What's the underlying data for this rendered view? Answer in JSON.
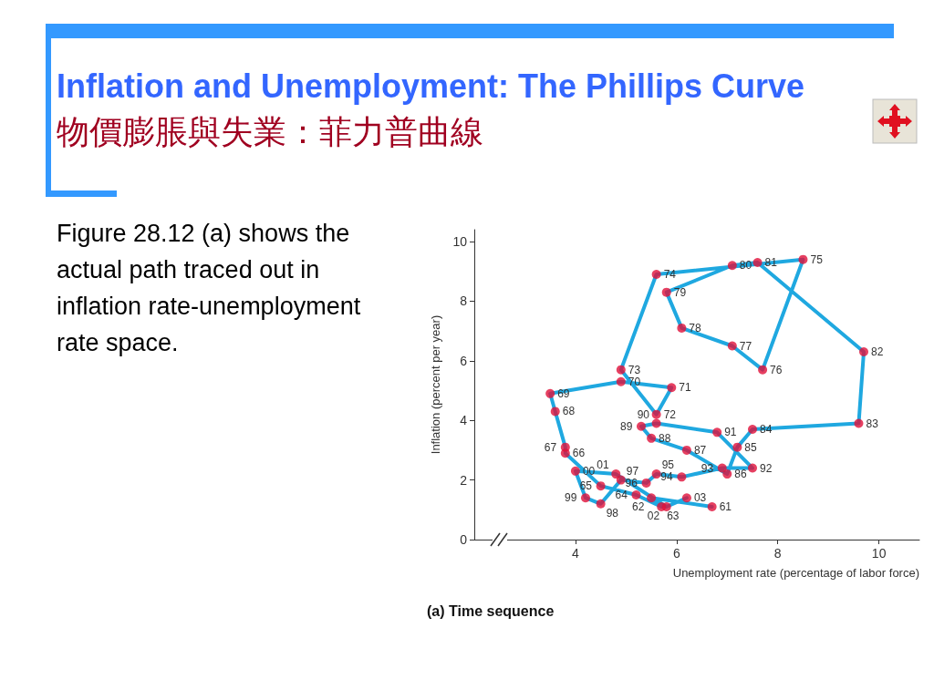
{
  "chart_data": {
    "type": "line",
    "title": "Inflation and Unemployment: The Phillips Curve物價膨脹與失業：菲力普曲線",
    "subtitle": "(a) Time sequence",
    "annotations": [
      "Figure 28.12 (a) shows the actual path traced out in inflation rate-unemployment rate space.",
      {
        "text": "61",
        "x": 6.7,
        "y": 1.1
      },
      {
        "text": "62",
        "x": 5.5,
        "y": 1.4
      },
      {
        "text": "63",
        "x": 5.7,
        "y": 1.1
      },
      {
        "text": "64",
        "x": 5.2,
        "y": 1.5
      },
      {
        "text": "65",
        "x": 4.5,
        "y": 1.8
      },
      {
        "text": "66",
        "x": 3.8,
        "y": 2.9
      },
      {
        "text": "67",
        "x": 3.8,
        "y": 3.1
      },
      {
        "text": "68",
        "x": 3.6,
        "y": 4.3
      },
      {
        "text": "69",
        "x": 3.5,
        "y": 4.9
      },
      {
        "text": "70",
        "x": 4.9,
        "y": 5.3
      },
      {
        "text": "71",
        "x": 5.9,
        "y": 5.1
      },
      {
        "text": "72",
        "x": 5.6,
        "y": 4.2
      },
      {
        "text": "73",
        "x": 4.9,
        "y": 5.7
      },
      {
        "text": "74",
        "x": 5.6,
        "y": 8.9
      },
      {
        "text": "75",
        "x": 8.5,
        "y": 9.4
      },
      {
        "text": "76",
        "x": 7.7,
        "y": 5.7
      },
      {
        "text": "77",
        "x": 7.1,
        "y": 6.5
      },
      {
        "text": "78",
        "x": 6.1,
        "y": 7.1
      },
      {
        "text": "79",
        "x": 5.8,
        "y": 8.3
      },
      {
        "text": "80",
        "x": 7.1,
        "y": 9.2
      },
      {
        "text": "81",
        "x": 7.6,
        "y": 9.3
      },
      {
        "text": "82",
        "x": 9.7,
        "y": 6.3
      },
      {
        "text": "83",
        "x": 9.6,
        "y": 3.9
      },
      {
        "text": "84",
        "x": 7.5,
        "y": 3.7
      },
      {
        "text": "85",
        "x": 7.2,
        "y": 3.1
      },
      {
        "text": "86",
        "x": 7.0,
        "y": 2.2
      },
      {
        "text": "87",
        "x": 6.2,
        "y": 3.0
      },
      {
        "text": "88",
        "x": 5.5,
        "y": 3.4
      },
      {
        "text": "89",
        "x": 5.3,
        "y": 3.8
      },
      {
        "text": "90",
        "x": 5.6,
        "y": 3.9
      },
      {
        "text": "91",
        "x": 6.8,
        "y": 3.6
      },
      {
        "text": "92",
        "x": 7.5,
        "y": 2.4
      },
      {
        "text": "93",
        "x": 6.9,
        "y": 2.4
      },
      {
        "text": "94",
        "x": 6.1,
        "y": 2.1
      },
      {
        "text": "95",
        "x": 5.6,
        "y": 2.2
      },
      {
        "text": "96",
        "x": 5.4,
        "y": 1.9
      },
      {
        "text": "97",
        "x": 4.9,
        "y": 2.0
      },
      {
        "text": "98",
        "x": 4.5,
        "y": 1.2
      },
      {
        "text": "99",
        "x": 4.2,
        "y": 1.4
      },
      {
        "text": "00",
        "x": 4.0,
        "y": 2.3
      },
      {
        "text": "01",
        "x": 4.8,
        "y": 2.2
      },
      {
        "text": "02",
        "x": 5.8,
        "y": 1.1
      },
      {
        "text": "03",
        "x": 6.2,
        "y": 1.4
      }
    ],
    "xlabel": "Unemployment rate (percentage of labor force)",
    "ylabel": "Inflation (percent per year)",
    "xlim": [
      2,
      10.8
    ],
    "xticks": [
      4,
      6,
      8,
      10
    ],
    "ylim": [
      0,
      10.4
    ],
    "yticks": [
      0,
      2,
      4,
      6,
      8,
      10
    ],
    "grid": false,
    "series": [
      {
        "color": "#1fa8e0",
        "marker": "none",
        "x": [
          6.7,
          5.5,
          5.7,
          5.2,
          4.5,
          3.8,
          3.8,
          3.6,
          3.5,
          4.9,
          5.9,
          5.6,
          4.9,
          5.6,
          8.5,
          7.7,
          7.1,
          6.1,
          5.8,
          7.1,
          7.6,
          9.7,
          9.6,
          7.5,
          7.2,
          7.0,
          6.2,
          5.5,
          5.3,
          5.6,
          6.8,
          7.5,
          6.9,
          6.1,
          5.6,
          5.4,
          4.9,
          4.5,
          4.2,
          4.0,
          4.8,
          5.8,
          6.2
        ],
        "values": [
          1.1,
          1.4,
          1.1,
          1.5,
          1.8,
          2.9,
          3.1,
          4.3,
          4.9,
          5.3,
          5.1,
          4.2,
          5.7,
          8.9,
          9.4,
          5.7,
          6.5,
          7.1,
          8.3,
          9.2,
          9.3,
          6.3,
          3.9,
          3.7,
          3.1,
          2.2,
          3.0,
          3.4,
          3.8,
          3.9,
          3.6,
          2.4,
          2.4,
          2.1,
          2.2,
          1.9,
          2.0,
          1.2,
          1.4,
          2.3,
          2.2,
          1.1,
          1.4
        ]
      },
      {
        "type": "scatter",
        "color": "#e0103a",
        "marker": "circle",
        "x": [
          6.7,
          5.5,
          5.7,
          5.2,
          4.5,
          3.8,
          3.8,
          3.6,
          3.5,
          4.9,
          5.9,
          5.6,
          4.9,
          5.6,
          8.5,
          7.7,
          7.1,
          6.1,
          5.8,
          7.1,
          7.6,
          9.7,
          9.6,
          7.5,
          7.2,
          7.0,
          6.2,
          5.5,
          5.3,
          5.6,
          6.8,
          7.5,
          6.9,
          6.1,
          5.6,
          5.4,
          4.9,
          4.5,
          4.2,
          4.0,
          4.8,
          5.8,
          6.2
        ],
        "values": [
          1.1,
          1.4,
          1.1,
          1.5,
          1.8,
          2.9,
          3.1,
          4.3,
          4.9,
          5.3,
          5.1,
          4.2,
          5.7,
          8.9,
          9.4,
          5.7,
          6.5,
          7.1,
          8.3,
          9.2,
          9.3,
          6.3,
          3.9,
          3.7,
          3.1,
          2.2,
          3.0,
          3.4,
          3.8,
          3.9,
          3.6,
          2.4,
          2.4,
          2.1,
          2.2,
          1.9,
          2.0,
          1.2,
          1.4,
          2.3,
          2.2,
          1.1,
          1.4
        ]
      }
    ]
  }
}
